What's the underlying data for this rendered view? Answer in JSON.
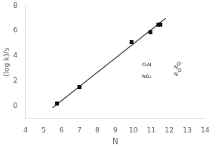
{
  "chart_data": {
    "type": "scatter",
    "xlabel": "N",
    "ylabel": "(log k)/s",
    "series": [
      {
        "type": "scatter",
        "marker": "square",
        "color": "#111111",
        "x": [
          5.75,
          7.0,
          9.9,
          10.95,
          11.4,
          11.5
        ],
        "values": [
          0.2,
          1.5,
          5.1,
          5.9,
          6.5,
          6.5
        ]
      },
      {
        "type": "line",
        "line_style": "solid",
        "color": "#444444",
        "x": [
          5.5,
          11.8
        ],
        "values": [
          -0.15,
          7.0
        ]
      }
    ],
    "xlim": [
      4,
      14
    ],
    "ylim": [
      -1,
      8
    ],
    "xticks": [
      4,
      5,
      6,
      7,
      8,
      9,
      10,
      11,
      12,
      13,
      14
    ],
    "yticks": [
      0,
      2,
      4,
      6,
      8
    ],
    "grid": false,
    "annotations": [
      {
        "text": "N",
        "x": 12.3664,
        "y": 3.08
      },
      {
        "text": "O",
        "x": 12.5664,
        "y": 2.8
      },
      {
        "text": "N",
        "x": 12.3664,
        "y": 2.52
      },
      {
        "text": "O₂N",
        "x": 10.75,
        "y": 3.25
      },
      {
        "text": "NO₂",
        "x": 10.75,
        "y": 2.35
      },
      {
        "text": "O⁻",
        "x": 12.5964,
        "y": 3.3425
      }
    ]
  }
}
